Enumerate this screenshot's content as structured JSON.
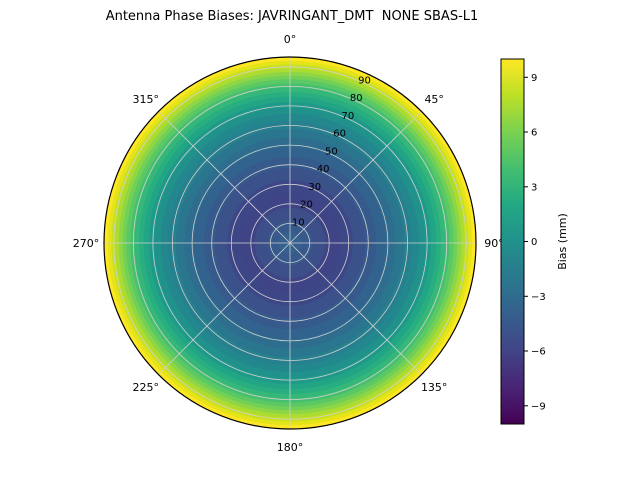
{
  "title": "Antenna Phase Biases: JAVRINGANT_DMT  NONE SBAS-L1",
  "chart_data": {
    "type": "polar_contour",
    "title": "Antenna Phase Biases: JAVRINGANT_DMT  NONE SBAS-L1",
    "projection": "polar, 0 deg at top, clockwise",
    "rmax": 95,
    "radial_ticks": [
      10,
      20,
      30,
      40,
      50,
      60,
      70,
      80,
      90
    ],
    "radial_label_angle_deg": 25,
    "angular_ticks": [
      {
        "deg": 0,
        "label": "0°"
      },
      {
        "deg": 45,
        "label": "45°"
      },
      {
        "deg": 90,
        "label": "90°"
      },
      {
        "deg": 135,
        "label": "135°"
      },
      {
        "deg": 180,
        "label": "180°"
      },
      {
        "deg": 225,
        "label": "225°"
      },
      {
        "deg": 270,
        "label": "270°"
      },
      {
        "deg": 315,
        "label": "315°"
      }
    ],
    "grid_color": "#cfcfcf",
    "bias_profile": {
      "zenith_deg": [
        0,
        10,
        20,
        30,
        40,
        50,
        60,
        70,
        80,
        90,
        95
      ],
      "bias_mm": [
        -3,
        -4,
        -5,
        -5.5,
        -5.5,
        -5,
        -3.5,
        -1.5,
        1,
        5.5,
        9.5
      ]
    },
    "rings": [
      {
        "f": 1.0,
        "color": "#fde725"
      },
      {
        "f": 0.98,
        "color": "#e5e419"
      },
      {
        "f": 0.96,
        "color": "#c8e020"
      },
      {
        "f": 0.94,
        "color": "#aadc32"
      },
      {
        "f": 0.92,
        "color": "#8ed645"
      },
      {
        "f": 0.9,
        "color": "#73d056"
      },
      {
        "f": 0.88,
        "color": "#5ac864"
      },
      {
        "f": 0.858,
        "color": "#46c06f"
      },
      {
        "f": 0.836,
        "color": "#35b779"
      },
      {
        "f": 0.812,
        "color": "#28ae80"
      },
      {
        "f": 0.786,
        "color": "#21a585"
      },
      {
        "f": 0.758,
        "color": "#1f9a8a"
      },
      {
        "f": 0.728,
        "color": "#21918c"
      },
      {
        "f": 0.694,
        "color": "#23888e"
      },
      {
        "f": 0.656,
        "color": "#26808e"
      },
      {
        "f": 0.614,
        "color": "#2a768e"
      },
      {
        "f": 0.568,
        "color": "#2e6d8e"
      },
      {
        "f": 0.518,
        "color": "#32638e"
      },
      {
        "f": 0.464,
        "color": "#365a8c"
      },
      {
        "f": 0.404,
        "color": "#3a518a"
      },
      {
        "f": 0.338,
        "color": "#3d4787"
      },
      {
        "f": 0.266,
        "color": "#3f4487"
      },
      {
        "f": 0.19,
        "color": "#3c4f89"
      },
      {
        "f": 0.12,
        "color": "#38598c"
      },
      {
        "f": 0.06,
        "color": "#34618d"
      }
    ],
    "colorbar": {
      "label": "Bias (mm)",
      "vmin": -10,
      "vmax": 10,
      "ticks": [
        {
          "value": 9,
          "label": "9"
        },
        {
          "value": 6,
          "label": "6"
        },
        {
          "value": 3,
          "label": "3"
        },
        {
          "value": 0,
          "label": "0"
        },
        {
          "value": -3,
          "label": "−3"
        },
        {
          "value": -6,
          "label": "−6"
        },
        {
          "value": -9,
          "label": "−9"
        }
      ],
      "gradient_top_to_bottom": [
        "#fde725",
        "#bddf26",
        "#7ad151",
        "#44bf70",
        "#22a884",
        "#21918c",
        "#2a788e",
        "#355f8d",
        "#414487",
        "#482475",
        "#440154"
      ]
    }
  }
}
